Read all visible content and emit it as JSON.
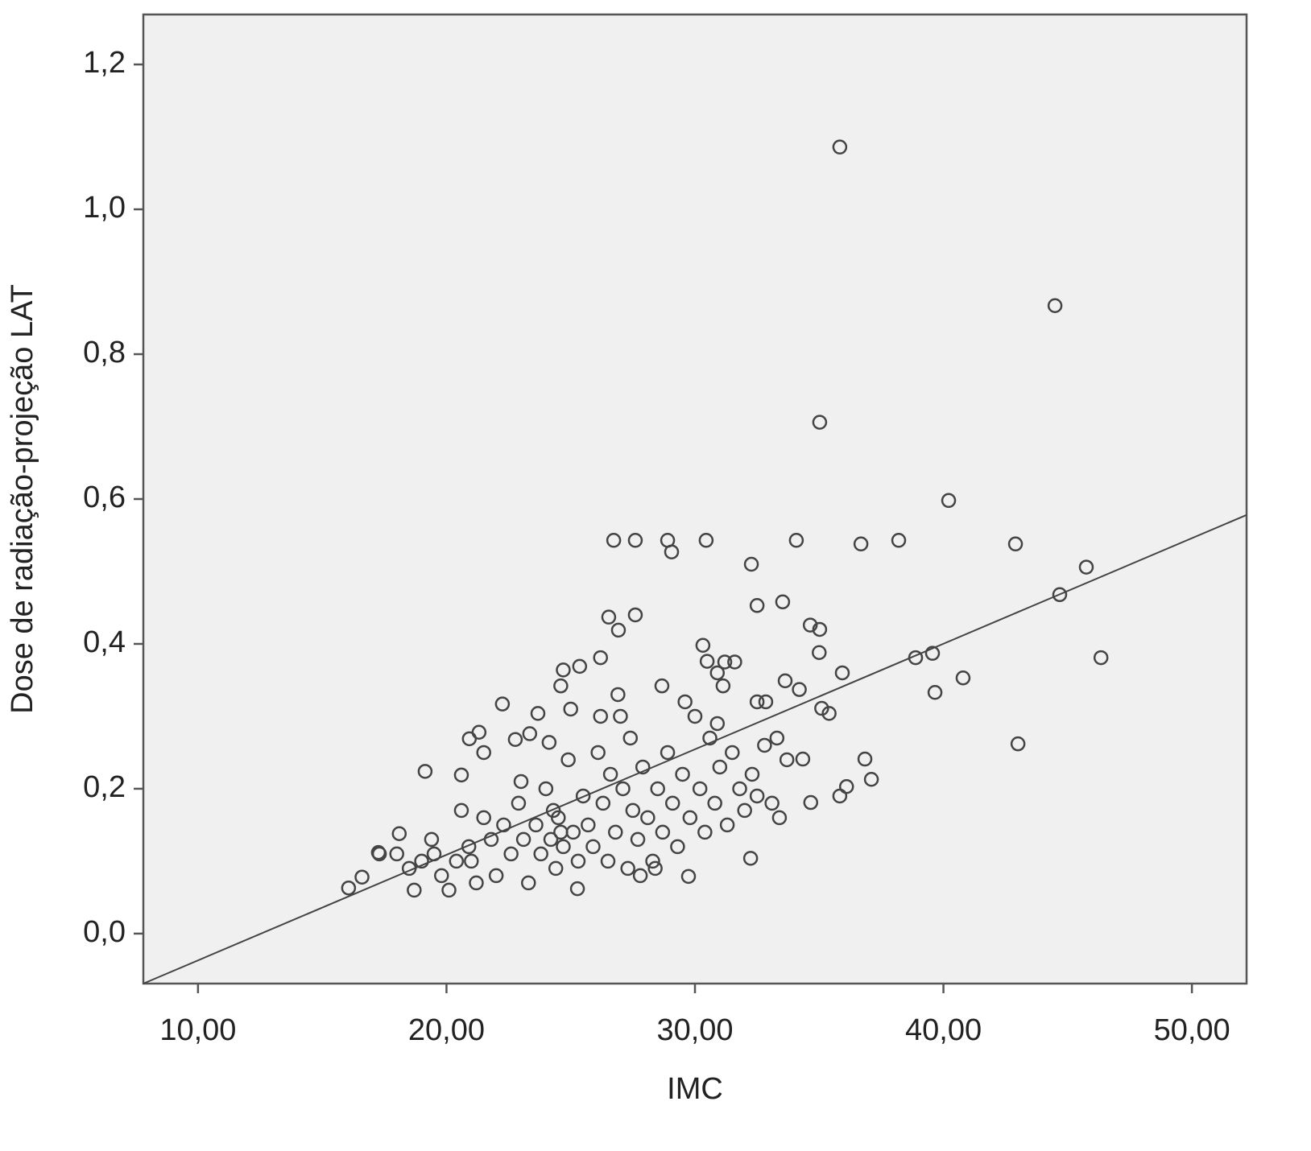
{
  "chart_data": {
    "type": "scatter",
    "xlabel": "IMC",
    "ylabel": "Dose de radiação-projeção LAT",
    "xlim": [
      7.8,
      52.2
    ],
    "ylim": [
      -0.069,
      1.269
    ],
    "xticks": [
      {
        "value": 10,
        "label": "10,00"
      },
      {
        "value": 20,
        "label": "20,00"
      },
      {
        "value": 30,
        "label": "30,00"
      },
      {
        "value": 40,
        "label": "40,00"
      },
      {
        "value": 50,
        "label": "50,00"
      }
    ],
    "yticks": [
      {
        "value": 0,
        "label": "0,0"
      },
      {
        "value": 0.2,
        "label": "0,2"
      },
      {
        "value": 0.4,
        "label": "0,4"
      },
      {
        "value": 0.6,
        "label": "0,6"
      },
      {
        "value": 0.8,
        "label": "0,8"
      },
      {
        "value": 1.0,
        "label": "1,0"
      },
      {
        "value": 1.2,
        "label": "1,2"
      }
    ],
    "color": "#444444",
    "background": "#f0f0f0",
    "x": [
      35.83,
      44.49,
      35.02,
      40.21,
      42.9,
      45.75,
      44.68,
      46.34,
      43.0,
      39.66,
      40.79,
      39.56,
      38.88,
      38.2,
      36.68,
      34.08,
      30.45,
      28.9,
      27.6,
      26.73,
      29.06,
      32.27,
      32.5,
      33.53,
      26.53,
      27.6,
      26.92,
      34.64,
      35.02,
      35.0,
      35.93,
      33.63,
      34.2,
      30.32,
      30.49,
      31.2,
      31.6,
      30.9,
      31.13,
      26.2,
      25.36,
      24.7,
      24.6,
      28.67,
      22.25,
      23.68,
      35.1,
      35.4,
      32.5,
      32.85,
      36.84,
      37.1,
      34.34,
      34.66,
      35.83,
      36.1,
      19.14,
      20.6,
      21.31,
      20.92,
      21.5,
      23.35,
      22.77,
      24.13,
      32.24,
      29.74,
      25.27,
      16.06,
      16.6,
      17.26,
      18.1,
      18.5,
      18.7,
      19.0,
      19.4,
      19.8,
      20.1,
      20.4,
      20.6,
      20.9,
      21.2,
      21.5,
      21.8,
      22.0,
      22.3,
      22.6,
      22.9,
      23.1,
      23.3,
      23.6,
      23.8,
      24.0,
      24.2,
      24.4,
      24.5,
      24.7,
      24.9,
      25.1,
      25.3,
      25.5,
      25.7,
      25.9,
      26.1,
      26.3,
      26.5,
      26.6,
      26.8,
      27.0,
      27.1,
      27.3,
      27.5,
      27.7,
      27.9,
      28.1,
      28.3,
      28.5,
      28.7,
      28.9,
      29.1,
      29.3,
      29.5,
      29.8,
      30.0,
      30.2,
      30.4,
      30.6,
      30.8,
      31.0,
      31.3,
      31.5,
      31.8,
      32.0,
      32.3,
      32.5,
      32.8,
      33.1,
      33.4,
      33.7,
      33.3,
      28.4,
      27.8,
      26.9,
      25.0,
      23.0,
      21.0,
      19.5,
      18.0,
      17.3,
      24.3,
      24.6,
      29.6,
      30.9,
      27.4,
      26.2
    ],
    "values": [
      1.086,
      0.867,
      0.706,
      0.598,
      0.538,
      0.506,
      0.468,
      0.381,
      0.262,
      0.333,
      0.353,
      0.387,
      0.381,
      0.543,
      0.538,
      0.543,
      0.543,
      0.543,
      0.543,
      0.543,
      0.527,
      0.51,
      0.453,
      0.458,
      0.437,
      0.44,
      0.419,
      0.426,
      0.42,
      0.388,
      0.36,
      0.349,
      0.337,
      0.398,
      0.376,
      0.375,
      0.375,
      0.36,
      0.342,
      0.381,
      0.369,
      0.364,
      0.342,
      0.342,
      0.317,
      0.304,
      0.311,
      0.304,
      0.32,
      0.32,
      0.241,
      0.213,
      0.241,
      0.181,
      0.19,
      0.203,
      0.224,
      0.219,
      0.278,
      0.269,
      0.25,
      0.276,
      0.268,
      0.264,
      0.104,
      0.079,
      0.062,
      0.063,
      0.078,
      0.112,
      0.138,
      0.09,
      0.06,
      0.1,
      0.13,
      0.08,
      0.06,
      0.1,
      0.17,
      0.12,
      0.07,
      0.16,
      0.13,
      0.08,
      0.15,
      0.11,
      0.18,
      0.13,
      0.07,
      0.15,
      0.11,
      0.2,
      0.13,
      0.09,
      0.16,
      0.12,
      0.24,
      0.14,
      0.1,
      0.19,
      0.15,
      0.12,
      0.25,
      0.18,
      0.1,
      0.22,
      0.14,
      0.3,
      0.2,
      0.09,
      0.17,
      0.13,
      0.23,
      0.16,
      0.1,
      0.2,
      0.14,
      0.25,
      0.18,
      0.12,
      0.22,
      0.16,
      0.3,
      0.2,
      0.14,
      0.27,
      0.18,
      0.23,
      0.15,
      0.25,
      0.2,
      0.17,
      0.22,
      0.19,
      0.26,
      0.18,
      0.16,
      0.24,
      0.27,
      0.09,
      0.08,
      0.33,
      0.31,
      0.21,
      0.1,
      0.11,
      0.11,
      0.11,
      0.17,
      0.14,
      0.32,
      0.29,
      0.27,
      0.3
    ],
    "fit": {
      "x": [
        7.8,
        52.2
      ],
      "values": [
        -0.069,
        0.578
      ]
    }
  }
}
